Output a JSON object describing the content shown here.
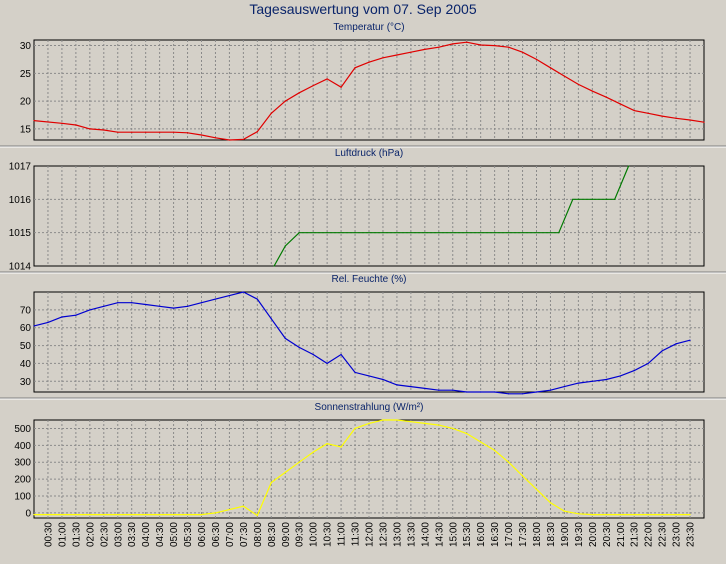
{
  "header": {
    "title": "Tagesauswertung vom 07. Sep 2005"
  },
  "x_tick_labels": [
    "00:30",
    "01:00",
    "01:30",
    "02:00",
    "02:30",
    "03:00",
    "03:30",
    "04:00",
    "04:30",
    "05:00",
    "05:30",
    "06:00",
    "06:30",
    "07:00",
    "07:30",
    "08:00",
    "08:30",
    "09:00",
    "09:30",
    "10:00",
    "10:30",
    "11:00",
    "11:30",
    "12:00",
    "12:30",
    "13:00",
    "13:30",
    "14:00",
    "14:30",
    "15:00",
    "15:30",
    "16:00",
    "16:30",
    "17:00",
    "17:30",
    "18:00",
    "18:30",
    "19:00",
    "19:30",
    "20:00",
    "20:30",
    "21:00",
    "21:30",
    "22:00",
    "22:30",
    "23:00",
    "23:30"
  ],
  "colors": {
    "background": "#d4d0c8",
    "plot_background": "#d4d0c8",
    "grid": "#8a8a8a",
    "title_text": "#0a246a",
    "axis_text": "#000000"
  },
  "chart_data": [
    {
      "type": "line",
      "title": "Temperatur (°C)",
      "color": "#e00000",
      "ylim": [
        13,
        31
      ],
      "yticks": [
        15,
        20,
        25,
        30
      ],
      "grid": true,
      "series": [
        {
          "x": [
            0.0,
            1.0,
            1.5,
            2.0,
            2.5,
            3.0,
            3.5,
            4.0,
            4.5,
            5.0,
            5.5,
            6.0,
            6.5,
            7.0,
            7.5,
            8.0,
            8.5,
            9.0,
            9.5,
            10.0,
            10.5,
            11.0,
            11.5,
            12.0,
            12.5,
            13.0,
            13.5,
            14.0,
            14.5,
            15.0,
            15.5,
            16.0,
            16.5,
            17.0,
            17.5,
            18.0,
            18.5,
            19.0,
            19.5,
            20.0,
            20.5,
            21.0,
            21.5,
            22.0,
            22.5,
            23.0,
            23.5,
            24.0
          ],
          "values": [
            16.5,
            16.0,
            15.7,
            15.0,
            14.8,
            14.4,
            14.4,
            14.4,
            14.4,
            14.4,
            14.3,
            13.9,
            13.4,
            13.0,
            13.1,
            14.5,
            17.8,
            20.0,
            21.5,
            22.8,
            24.0,
            22.5,
            26.0,
            27.0,
            27.8,
            28.3,
            28.8,
            29.3,
            29.7,
            30.3,
            30.6,
            30.1,
            30.0,
            29.7,
            28.8,
            27.5,
            26.0,
            24.5,
            23.0,
            21.8,
            20.7,
            19.5,
            18.3,
            17.8,
            17.3,
            16.9,
            16.6,
            16.2
          ]
        }
      ]
    },
    {
      "type": "line",
      "title": "Luftdruck (hPa)",
      "color": "#007a00",
      "ylim": [
        1014,
        1017
      ],
      "yticks": [
        1014,
        1015,
        1016,
        1017
      ],
      "grid": true,
      "series": [
        {
          "x": [
            8.6,
            9.0,
            9.5,
            18.8,
            19.3,
            20.0,
            20.5,
            20.8,
            21.3
          ],
          "values": [
            1014.0,
            1014.6,
            1015.0,
            1015.0,
            1016.0,
            1016.0,
            1016.0,
            1016.0,
            1017.0
          ]
        }
      ]
    },
    {
      "type": "line",
      "title": "Rel. Feuchte (%)",
      "color": "#0000d0",
      "ylim": [
        24,
        80
      ],
      "yticks": [
        30,
        40,
        50,
        60,
        70
      ],
      "grid": true,
      "series": [
        {
          "x": [
            0.0,
            0.5,
            1.0,
            1.5,
            2.0,
            2.5,
            3.0,
            3.5,
            4.0,
            4.5,
            5.0,
            5.5,
            6.0,
            6.5,
            7.0,
            7.5,
            8.0,
            8.5,
            9.0,
            9.5,
            10.0,
            10.5,
            11.0,
            11.5,
            12.0,
            12.5,
            13.0,
            13.5,
            14.0,
            14.5,
            15.0,
            15.5,
            16.0,
            16.5,
            17.0,
            17.5,
            18.0,
            18.5,
            19.0,
            19.5,
            20.0,
            20.5,
            21.0,
            21.5,
            22.0,
            22.5,
            23.0,
            23.5
          ],
          "values": [
            61,
            63,
            66,
            67,
            70,
            72,
            74,
            74,
            73,
            72,
            71,
            72,
            74,
            76,
            78,
            80,
            76,
            65,
            54,
            49,
            45,
            40,
            45,
            35,
            33,
            31,
            28,
            27,
            26,
            25,
            25,
            24,
            24,
            24,
            23,
            23,
            24,
            25,
            27,
            29,
            30,
            31,
            33,
            36,
            40,
            47,
            51,
            53
          ]
        }
      ]
    },
    {
      "type": "line",
      "title": "Sonnenstrahlung (W/m²)",
      "color": "#ffff00",
      "ylim": [
        -30,
        550
      ],
      "yticks": [
        0,
        100,
        200,
        300,
        400,
        500
      ],
      "grid": true,
      "series": [
        {
          "x": [
            0.0,
            6.0,
            6.5,
            7.0,
            7.5,
            8.0,
            8.5,
            9.0,
            9.5,
            10.0,
            10.5,
            11.0,
            11.5,
            12.0,
            12.5,
            13.0,
            13.5,
            14.0,
            14.5,
            15.0,
            15.5,
            16.0,
            16.5,
            17.0,
            17.5,
            18.0,
            18.5,
            19.0,
            19.5,
            20.0,
            23.5
          ],
          "values": [
            -10,
            -10,
            0,
            20,
            40,
            -15,
            180,
            240,
            300,
            360,
            410,
            390,
            500,
            530,
            550,
            550,
            540,
            530,
            520,
            500,
            470,
            420,
            370,
            300,
            220,
            140,
            60,
            10,
            -5,
            -10,
            -10
          ]
        }
      ]
    }
  ]
}
